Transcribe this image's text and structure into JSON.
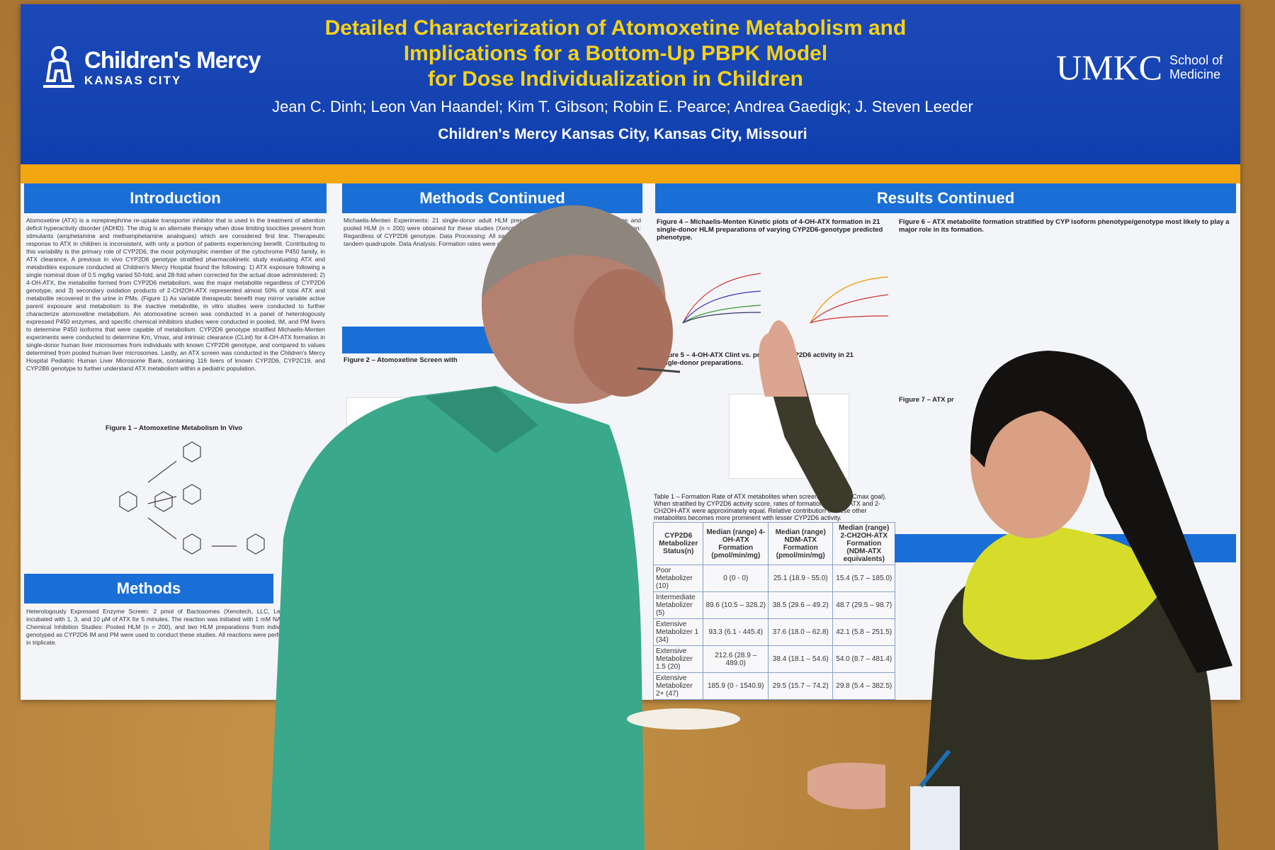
{
  "poster": {
    "title_lines": [
      "Detailed Characterization of Atomoxetine Metabolism and",
      "Implications for a Bottom-Up PBPK Model",
      "for Dose Individualization in Children"
    ],
    "authors": "Jean C. Dinh; Leon Van Haandel; Kim T. Gibson; Robin E. Pearce; Andrea Gaedigk; J. Steven Leeder",
    "affiliation": "Children's Mercy Kansas City, Kansas City, Missouri",
    "logo_left": {
      "name": "Children's Mercy",
      "sub": "KANSAS CITY"
    },
    "logo_right": {
      "name": "UMKC",
      "sub1": "School of",
      "sub2": "Medicine"
    },
    "colors": {
      "header_blue": "#0f3fae",
      "title_yellow": "#f5d21a",
      "band_orange": "#f2a711",
      "section_blue": "#1a6fd6"
    },
    "sections": {
      "introduction": "Introduction",
      "methods_continued": "Methods Continued",
      "results_continued": "Results Continued",
      "methods": "Methods"
    },
    "intro_text": "Atomoxetine (ATX) is a norepinephrine re-uptake transporter inhibitor that is used in the treatment of attention deficit hyperactivity disorder (ADHD). The drug is an alternate therapy when dose limiting toxicities present from stimulants (amphetamine and methamphetamine analogues) which are considered first line. Therapeutic response to ATX in children is inconsistent, with only a portion of patients experiencing benefit. Contributing to this variability is the primary role of CYP2D6, the most polymorphic member of the cytochrome P450 family, in ATX clearance. A previous in vivo CYP2D6 genotype stratified pharmacokinetic study evaluating ATX and metabolites exposure conducted at Children's Mercy Hospital found the following: 1) ATX exposure following a single nominal dose of 0.5 mg/kg varied 50-fold, and 28-fold when corrected for the actual dose administered; 2) 4-OH-ATX, the metabolite formed from CYP2D6 metabolism, was the major metabolite regardless of CYP2D6 genotype, and 3) secondary oxidation products of 2-CH2OH-ATX represented almost 50% of total ATX and metabolite recovered in the urine in PMs. (Figure 1) As variable therapeutic benefit may mirror variable active parent exposure and metabolism to the inactive metabolite, in vitro studies were conducted to further characterize atomoxetine metabolism. An atomoxetine screen was conducted in a panel of heterologously expressed P450 enzymes, and specific chemical inhibitors studies were conducted in pooled, IM, and PM livers to determine P450 isoforms that were capable of metabolism. CYP2D6 genotype stratified Michaelis-Menten experiments were conducted to determine Km, Vmax, and intrinsic clearance (CLint) for 4-OH-ATX formation in single-donor human liver microsomes from individuals with known CYP2D6 genotype, and compared to values determined from pooled human liver microsomes. Lastly, an ATX screen was conducted in the Children's Mercy Hospital Pediatric Human Liver Microsome Bank, containing 116 livers of known CYP2D6, CYP2C19, and CYP2B6 genotype to further understand ATX metabolism within a pediatric population.",
    "figure1_caption": "Figure 1 – Atomoxetine Metabolism In Vivo",
    "methods_text": "Heterologously Expressed Enzyme Screen: 2 pmol of Bactosomes (Xenotech, LLC, Lenexa) incubated with 1, 3, and 10 µM of ATX for 5 minutes. The reaction was initiated with 1 mM NADPH. Chemical Inhibition Studies: Pooled HLM (n = 200), and two HLM preparations from individuals genotyped as CYP2D6 IM and PM were used to conduct these studies. All reactions were performed in triplicate.",
    "methods_cont_text": "Michaelis-Menten Experiments: 21 single-donor adult HLM preparations of known CYP2D6 genotype and pooled HLM (n = 200) were obtained for these studies (Xenotech, LLC, Lenexa, KS). Pediatric HLM screen: Regardless of CYP2D6 genotype. Data Processing: All samples were analyzed using a Waters Xevo TQ-S tandem quadrupole. Data Analysis: Formation rates were calculated.",
    "figure2_caption": "Figure 2 – Atomoxetine Screen with",
    "figure4_caption": "Figure 4 – Michaelis-Menten Kinetic plots of 4-OH-ATX formation in 21 single-donor HLM preparations of varying CYP2D6-genotype predicted phenotype.",
    "figure5_caption": "Figure 5 – 4-OH-ATX Clint vs. predicted CYP2D6 activity in 21 single-donor preparations.",
    "figure6_caption": "Figure 6 – ATX metabolite formation stratified by CYP isoform phenotype/genotype most likely to play a major role in its formation.",
    "figure7_caption": "Figure 7 – ATX pr",
    "table1": {
      "caption": "Table 1 – Formation Rate of ATX metabolites when screened at 3 µM (Cmax goal). When stratified by CYP2D6 activity score, rates of formation of NDM-ATX and 2-CH2OH-ATX were approximately equal. Relative contribution of these other metabolites becomes more prominent with lesser CYP2D6 activity.",
      "headers": [
        "CYP2D6 Metabolizer Status(n)",
        "Median (range) 4-OH-ATX Formation (pmol/min/mg)",
        "Median (range) NDM-ATX Formation (pmol/min/mg)",
        "Median (range) 2-CH2OH-ATX Formation (NDM-ATX equivalents)"
      ],
      "rows": [
        [
          "Poor Metabolizer (10)",
          "0 (0 - 0)",
          "25.1 (18.9 - 55.0)",
          "15.4 (5.7 – 185.0)"
        ],
        [
          "Intermediate Metabolizer (5)",
          "89.6 (10.5 – 328.2)",
          "38.5 (29.6 – 49.2)",
          "48.7 (29.5 – 98.7)"
        ],
        [
          "Extensive Metabolizer 1 (34)",
          "93.3 (6.1 - 445.4)",
          "37.6 (18.0 – 62.8)",
          "42.1 (5.8 – 251.5)"
        ],
        [
          "Extensive Metabolizer 1.5 (20)",
          "212.6 (28.9 – 489.0)",
          "38.4 (18.1 – 54.6)",
          "54.0 (8.7 – 481.4)"
        ],
        [
          "Extensive Metabolizer 2+ (47)",
          "185.9 (0 - 1540.9)",
          "29.5 (15.7 – 74.2)",
          "29.8 (5.4 – 382.5)"
        ]
      ]
    }
  }
}
